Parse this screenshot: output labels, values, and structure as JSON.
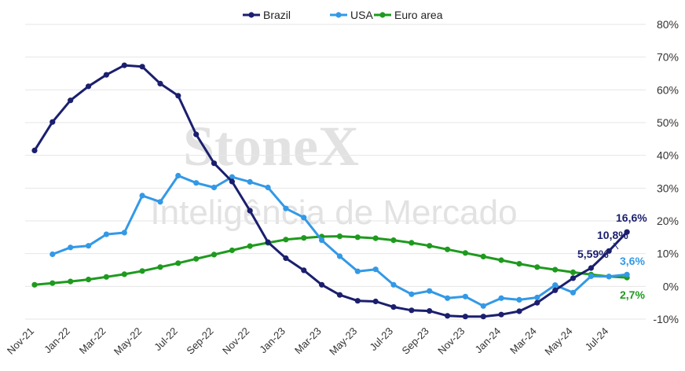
{
  "watermark": {
    "brand": "StoneX",
    "tagline": "Inteligência de Mercado"
  },
  "chart_data": {
    "type": "line",
    "title": "",
    "xlabel": "",
    "ylabel": "",
    "ylim": [
      -10,
      80
    ],
    "y_ticks": [
      "-10%",
      "0%",
      "10%",
      "20%",
      "30%",
      "40%",
      "50%",
      "60%",
      "70%",
      "80%"
    ],
    "y_axis_side": "right",
    "grid": "horizontal",
    "legend_position": "top",
    "x": [
      "Nov-21",
      "Dec-21",
      "Jan-22",
      "Feb-22",
      "Mar-22",
      "Apr-22",
      "May-22",
      "Jun-22",
      "Jul-22",
      "Aug-22",
      "Sep-22",
      "Oct-22",
      "Nov-22",
      "Dec-22",
      "Jan-23",
      "Feb-23",
      "Mar-23",
      "Apr-23",
      "May-23",
      "Jun-23",
      "Jul-23",
      "Aug-23",
      "Sep-23",
      "Oct-23",
      "Nov-23",
      "Dec-23",
      "Jan-24",
      "Feb-24",
      "Mar-24",
      "Apr-24",
      "May-24",
      "Jun-24",
      "Jul-24",
      "Aug-24"
    ],
    "x_tick_labels": [
      "Nov-21",
      "Jan-22",
      "Mar-22",
      "May-22",
      "Jul-22",
      "Sep-22",
      "Nov-22",
      "Jan-23",
      "Mar-23",
      "May-23",
      "Jul-23",
      "Sep-23",
      "Nov-23",
      "Jan-24",
      "Mar-24",
      "May-24",
      "Jul-24"
    ],
    "series": [
      {
        "name": "Brazil",
        "color": "#1b1f6e",
        "values": [
          41.5,
          50.2,
          56.8,
          61.1,
          64.6,
          67.5,
          67.1,
          61.9,
          58.2,
          46.4,
          37.6,
          32.0,
          23.1,
          13.5,
          8.6,
          4.9,
          0.5,
          -2.6,
          -4.4,
          -4.6,
          -6.3,
          -7.3,
          -7.5,
          -9.0,
          -9.2,
          -9.2,
          -8.6,
          -7.6,
          -5.0,
          -1.2,
          2.5,
          5.6,
          10.8,
          16.6
        ],
        "end_labels": [
          "5,59%",
          "10,8%",
          "16,6%"
        ]
      },
      {
        "name": "USA",
        "color": "#3399e6",
        "values": [
          null,
          9.8,
          11.9,
          12.4,
          15.9,
          16.4,
          27.7,
          25.8,
          33.8,
          31.6,
          30.2,
          33.4,
          31.9,
          30.2,
          23.8,
          21.0,
          14.1,
          9.2,
          4.6,
          5.2,
          0.5,
          -2.4,
          -1.4,
          -3.6,
          -3.1,
          -6.0,
          -3.6,
          -4.1,
          -3.4,
          0.4,
          -1.9,
          3.1,
          3.0,
          3.6
        ],
        "end_labels": [
          "3,6%"
        ]
      },
      {
        "name": "Euro area",
        "color": "#1e9a1e",
        "values": [
          0.5,
          1.0,
          1.5,
          2.1,
          2.9,
          3.7,
          4.7,
          5.9,
          7.1,
          8.4,
          9.7,
          11.0,
          12.3,
          13.3,
          14.3,
          14.8,
          15.2,
          15.3,
          15.0,
          14.7,
          14.1,
          13.3,
          12.4,
          11.3,
          10.2,
          9.1,
          8.0,
          6.9,
          5.9,
          5.1,
          4.3,
          3.6,
          3.0,
          2.7
        ],
        "end_labels": [
          "2,7%"
        ]
      }
    ]
  }
}
